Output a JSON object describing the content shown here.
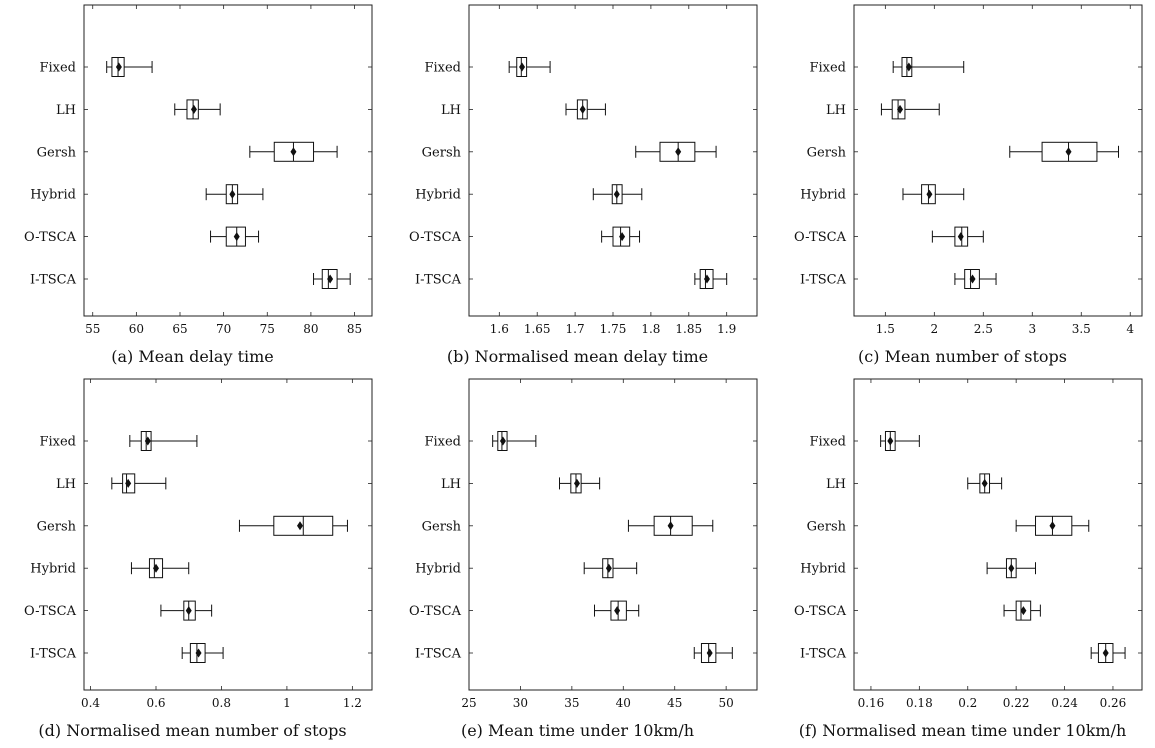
{
  "chart_data": [
    {
      "type": "boxplot",
      "caption": "(a) Mean delay time",
      "categories": [
        "Fixed",
        "LH",
        "Gersh",
        "Hybrid",
        "O-TSCA",
        "I-TSCA"
      ],
      "xlim": [
        54,
        87
      ],
      "xticks": [
        55,
        60,
        65,
        70,
        75,
        80,
        85
      ],
      "tick_labels": [
        "55",
        "60",
        "65",
        "70",
        "75",
        "80",
        "85"
      ],
      "boxes": [
        {
          "min": 56.6,
          "q1": 57.2,
          "median": 57.9,
          "q3": 58.6,
          "max": 61.8,
          "mean": 58.0
        },
        {
          "min": 64.4,
          "q1": 65.8,
          "median": 66.5,
          "q3": 67.1,
          "max": 69.6,
          "mean": 66.6
        },
        {
          "min": 73.0,
          "q1": 75.8,
          "median": 78.0,
          "q3": 80.3,
          "max": 83.0,
          "mean": 78.0
        },
        {
          "min": 68.0,
          "q1": 70.3,
          "median": 71.0,
          "q3": 71.6,
          "max": 74.5,
          "mean": 71.0
        },
        {
          "min": 68.5,
          "q1": 70.3,
          "median": 71.5,
          "q3": 72.5,
          "max": 74.0,
          "mean": 71.5
        },
        {
          "min": 80.3,
          "q1": 81.3,
          "median": 82.0,
          "q3": 83.0,
          "max": 84.5,
          "mean": 82.2
        }
      ]
    },
    {
      "type": "boxplot",
      "caption": "(b) Normalised mean delay time",
      "categories": [
        "Fixed",
        "LH",
        "Gersh",
        "Hybrid",
        "O-TSCA",
        "I-TSCA"
      ],
      "xlim": [
        1.56,
        1.94
      ],
      "xticks": [
        1.6,
        1.65,
        1.7,
        1.75,
        1.8,
        1.85,
        1.9
      ],
      "tick_labels": [
        "1.6",
        "1.65",
        "1.7",
        "1.75",
        "1.8",
        "1.85",
        "1.9"
      ],
      "boxes": [
        {
          "min": 1.613,
          "q1": 1.623,
          "median": 1.629,
          "q3": 1.636,
          "max": 1.667,
          "mean": 1.63
        },
        {
          "min": 1.688,
          "q1": 1.703,
          "median": 1.71,
          "q3": 1.716,
          "max": 1.74,
          "mean": 1.71
        },
        {
          "min": 1.78,
          "q1": 1.812,
          "median": 1.836,
          "q3": 1.858,
          "max": 1.886,
          "mean": 1.836
        },
        {
          "min": 1.724,
          "q1": 1.749,
          "median": 1.755,
          "q3": 1.762,
          "max": 1.788,
          "mean": 1.755
        },
        {
          "min": 1.735,
          "q1": 1.75,
          "median": 1.76,
          "q3": 1.772,
          "max": 1.785,
          "mean": 1.762
        },
        {
          "min": 1.858,
          "q1": 1.865,
          "median": 1.872,
          "q3": 1.882,
          "max": 1.9,
          "mean": 1.874
        }
      ]
    },
    {
      "type": "boxplot",
      "caption": "(c) Mean number of stops",
      "categories": [
        "Fixed",
        "LH",
        "Gersh",
        "Hybrid",
        "O-TSCA",
        "I-TSCA"
      ],
      "xlim": [
        1.18,
        4.12
      ],
      "xticks": [
        1.5,
        2,
        2.5,
        3,
        3.5,
        4
      ],
      "tick_labels": [
        "1.5",
        "2",
        "2.5",
        "3",
        "3.5",
        "4"
      ],
      "boxes": [
        {
          "min": 1.58,
          "q1": 1.67,
          "median": 1.72,
          "q3": 1.77,
          "max": 2.3,
          "mean": 1.74
        },
        {
          "min": 1.46,
          "q1": 1.57,
          "median": 1.63,
          "q3": 1.7,
          "max": 2.05,
          "mean": 1.65
        },
        {
          "min": 2.77,
          "q1": 3.1,
          "median": 3.37,
          "q3": 3.66,
          "max": 3.88,
          "mean": 3.37
        },
        {
          "min": 1.68,
          "q1": 1.87,
          "median": 1.94,
          "q3": 2.01,
          "max": 2.3,
          "mean": 1.95
        },
        {
          "min": 1.98,
          "q1": 2.21,
          "median": 2.28,
          "q3": 2.34,
          "max": 2.5,
          "mean": 2.27
        },
        {
          "min": 2.21,
          "q1": 2.31,
          "median": 2.37,
          "q3": 2.46,
          "max": 2.63,
          "mean": 2.39
        }
      ]
    },
    {
      "type": "boxplot",
      "caption": "(d) Normalised mean number of stops",
      "categories": [
        "Fixed",
        "LH",
        "Gersh",
        "Hybrid",
        "O-TSCA",
        "I-TSCA"
      ],
      "xlim": [
        0.38,
        1.26
      ],
      "xticks": [
        0.4,
        0.6,
        0.8,
        1,
        1.2
      ],
      "tick_labels": [
        "0.4",
        "0.6",
        "0.8",
        "1",
        "1.2"
      ],
      "boxes": [
        {
          "min": 0.52,
          "q1": 0.555,
          "median": 0.57,
          "q3": 0.585,
          "max": 0.725,
          "mean": 0.575
        },
        {
          "min": 0.465,
          "q1": 0.498,
          "median": 0.51,
          "q3": 0.535,
          "max": 0.63,
          "mean": 0.515
        },
        {
          "min": 0.855,
          "q1": 0.96,
          "median": 1.05,
          "q3": 1.14,
          "max": 1.185,
          "mean": 1.04
        },
        {
          "min": 0.525,
          "q1": 0.58,
          "median": 0.595,
          "q3": 0.62,
          "max": 0.7,
          "mean": 0.6
        },
        {
          "min": 0.615,
          "q1": 0.685,
          "median": 0.7,
          "q3": 0.72,
          "max": 0.77,
          "mean": 0.7
        },
        {
          "min": 0.68,
          "q1": 0.705,
          "median": 0.725,
          "q3": 0.75,
          "max": 0.805,
          "mean": 0.73
        }
      ]
    },
    {
      "type": "boxplot",
      "caption": "(e) Mean time under 10km/h",
      "categories": [
        "Fixed",
        "LH",
        "Gersh",
        "Hybrid",
        "O-TSCA",
        "I-TSCA"
      ],
      "xlim": [
        25,
        53
      ],
      "xticks": [
        25,
        30,
        35,
        40,
        45,
        50
      ],
      "tick_labels": [
        "25",
        "30",
        "35",
        "40",
        "45",
        "50"
      ],
      "boxes": [
        {
          "min": 27.3,
          "q1": 27.8,
          "median": 28.2,
          "q3": 28.7,
          "max": 31.5,
          "mean": 28.3
        },
        {
          "min": 33.8,
          "q1": 34.9,
          "median": 35.4,
          "q3": 35.9,
          "max": 37.7,
          "mean": 35.5
        },
        {
          "min": 40.5,
          "q1": 43.0,
          "median": 44.6,
          "q3": 46.7,
          "max": 48.7,
          "mean": 44.6
        },
        {
          "min": 36.2,
          "q1": 38.0,
          "median": 38.5,
          "q3": 39.0,
          "max": 41.3,
          "mean": 38.6
        },
        {
          "min": 37.2,
          "q1": 38.8,
          "median": 39.5,
          "q3": 40.3,
          "max": 41.5,
          "mean": 39.4
        },
        {
          "min": 46.9,
          "q1": 47.6,
          "median": 48.3,
          "q3": 49.0,
          "max": 50.6,
          "mean": 48.4
        }
      ]
    },
    {
      "type": "boxplot",
      "caption": "(f) Normalised mean time under 10km/h",
      "categories": [
        "Fixed",
        "LH",
        "Gersh",
        "Hybrid",
        "O-TSCA",
        "I-TSCA"
      ],
      "xlim": [
        0.153,
        0.272
      ],
      "xticks": [
        0.16,
        0.18,
        0.2,
        0.22,
        0.24,
        0.26
      ],
      "tick_labels": [
        "0.16",
        "0.18",
        "0.2",
        "0.22",
        "0.24",
        "0.26"
      ],
      "boxes": [
        {
          "min": 0.164,
          "q1": 0.166,
          "median": 0.168,
          "q3": 0.17,
          "max": 0.18,
          "mean": 0.168
        },
        {
          "min": 0.2,
          "q1": 0.205,
          "median": 0.207,
          "q3": 0.209,
          "max": 0.214,
          "mean": 0.207
        },
        {
          "min": 0.22,
          "q1": 0.228,
          "median": 0.235,
          "q3": 0.243,
          "max": 0.25,
          "mean": 0.235
        },
        {
          "min": 0.208,
          "q1": 0.216,
          "median": 0.218,
          "q3": 0.22,
          "max": 0.228,
          "mean": 0.218
        },
        {
          "min": 0.215,
          "q1": 0.22,
          "median": 0.222,
          "q3": 0.226,
          "max": 0.23,
          "mean": 0.223
        },
        {
          "min": 0.251,
          "q1": 0.254,
          "median": 0.257,
          "q3": 0.26,
          "max": 0.265,
          "mean": 0.257
        }
      ]
    }
  ]
}
